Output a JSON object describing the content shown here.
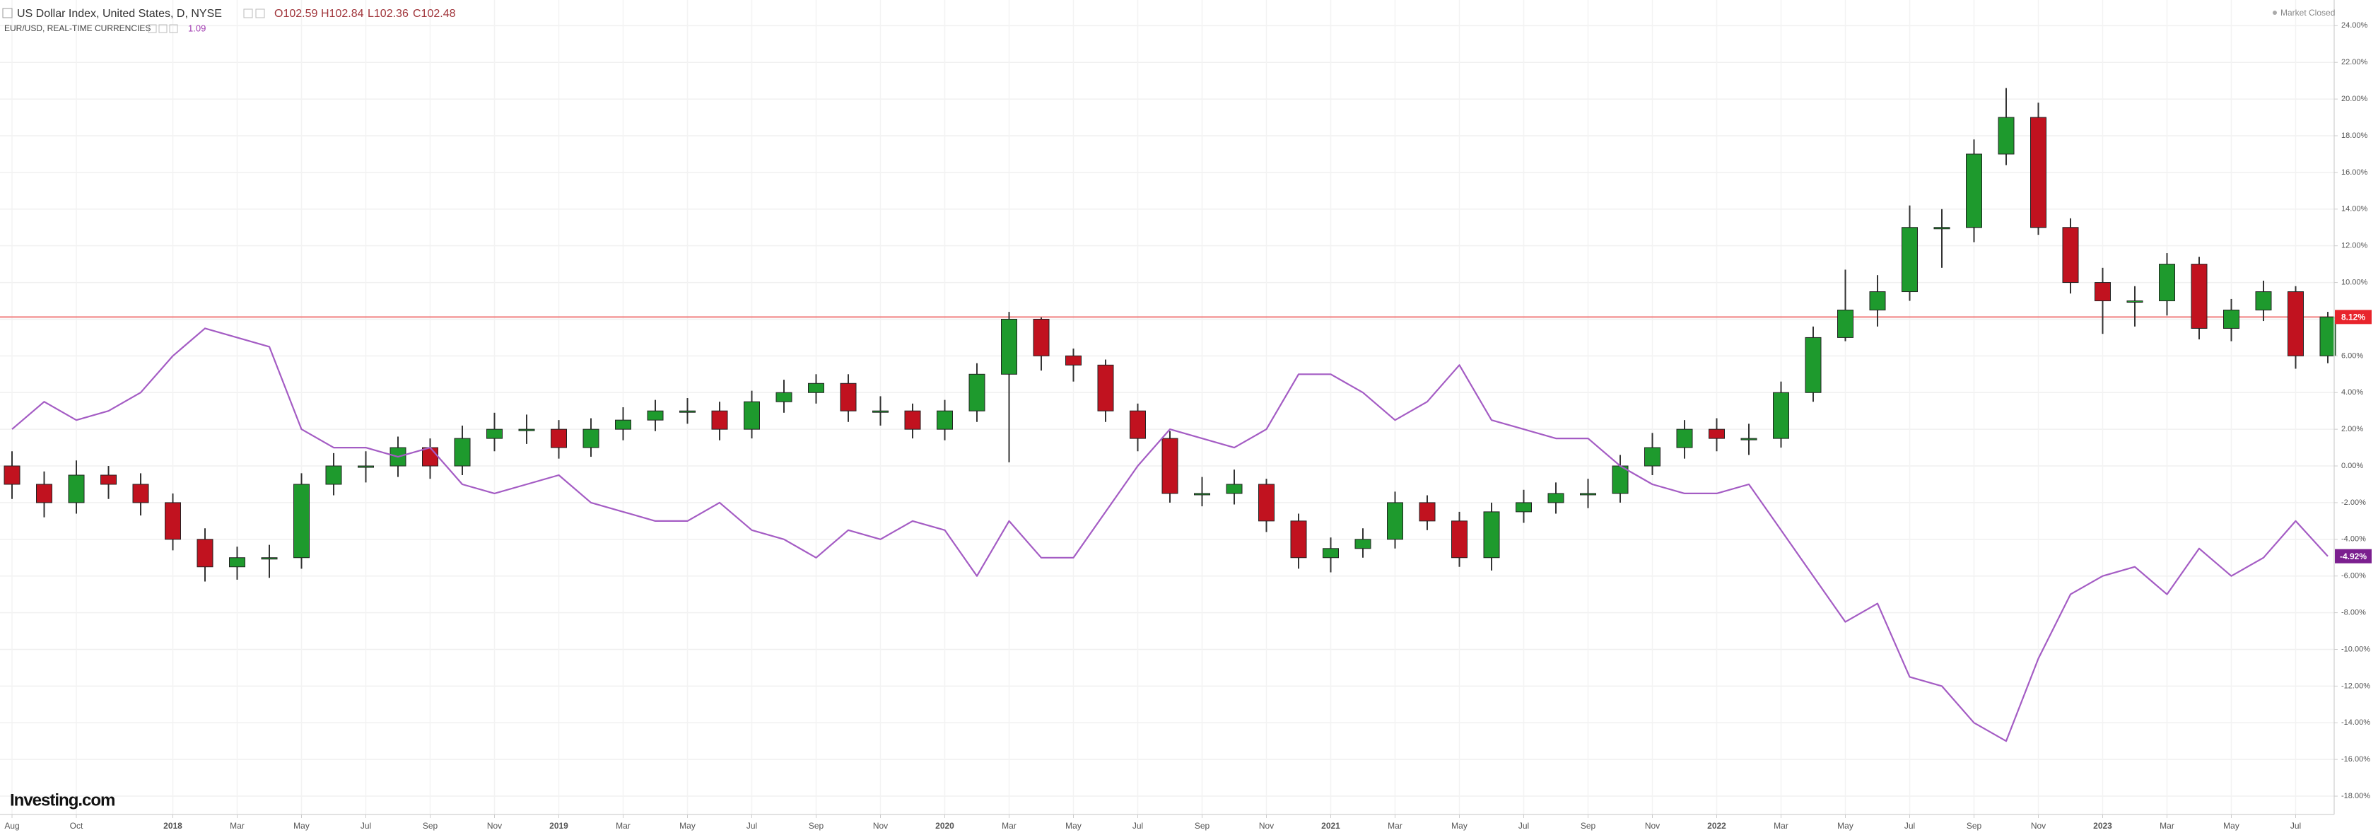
{
  "chart_data": {
    "type": "candlestick",
    "header": {
      "ohlc_labels": [
        "O102.59",
        "H102.84",
        "L102.36",
        "C102.48"
      ],
      "market_status": "Market Closed",
      "logo": "Investing.com"
    },
    "categories": [
      "Aug",
      null,
      "Oct",
      null,
      null,
      "2018",
      null,
      "Mar",
      null,
      "May",
      null,
      "Jul",
      null,
      "Sep",
      null,
      "Nov",
      null,
      "2019",
      null,
      "Mar",
      null,
      "May",
      null,
      "Jul",
      null,
      "Sep",
      null,
      "Nov",
      null,
      "2020",
      null,
      "Mar",
      null,
      "May",
      null,
      "Jul",
      null,
      "Sep",
      null,
      "Nov",
      null,
      "2021",
      null,
      "Mar",
      null,
      "May",
      null,
      "Jul",
      null,
      "Sep",
      null,
      "Nov",
      null,
      "2022",
      null,
      "Mar",
      null,
      "May",
      null,
      "Jul",
      null,
      "Sep",
      null,
      "Nov",
      null,
      "2023",
      null,
      "Mar",
      null,
      "May",
      null,
      "Jul",
      null
    ],
    "series": [
      {
        "name": "US Dollar Index, United States, D, NYSE",
        "type": "candlestick",
        "up_color": "#1e9a2d",
        "down_color": "#c1121f",
        "open": [
          0,
          -1,
          -2,
          -0.5,
          -1,
          -2,
          -4,
          -5.5,
          -5,
          -5,
          -1,
          0,
          0,
          1,
          0,
          1.5,
          2,
          2,
          1,
          2,
          2.5,
          3,
          3,
          2,
          3.5,
          4,
          4.5,
          3,
          3,
          2,
          3,
          5,
          8,
          6,
          5.5,
          3,
          1.5,
          -1.5,
          -1.5,
          -1,
          -3,
          -5,
          -4.5,
          -4,
          -2,
          -3,
          -5,
          -2.5,
          -2,
          -1.5,
          -1.5,
          0,
          1,
          2,
          1.5,
          1.5,
          4,
          7,
          8.5,
          9.5,
          13,
          13,
          17,
          19,
          13,
          10,
          9,
          9,
          11,
          7.5,
          8.5,
          9.5,
          6
        ],
        "high": [
          0.8,
          -0.3,
          0.3,
          0,
          -0.4,
          -1.5,
          -3.4,
          -4.4,
          -4.3,
          -0.4,
          0.7,
          0.8,
          1.6,
          1.5,
          2.2,
          2.9,
          2.8,
          2.5,
          2.6,
          3.2,
          3.6,
          3.7,
          3.5,
          4.1,
          4.7,
          5,
          5,
          3.8,
          3.4,
          3.6,
          5.6,
          8.4,
          8.1,
          6.4,
          5.8,
          3.4,
          1.9,
          -0.6,
          -0.2,
          -0.7,
          -2.6,
          -3.9,
          -3.4,
          -1.4,
          -1.6,
          -2.5,
          -2,
          -1.3,
          -0.9,
          -0.7,
          0.6,
          1.8,
          2.5,
          2.6,
          2.3,
          4.6,
          7.6,
          10.7,
          10.4,
          14.2,
          14,
          17.8,
          20.6,
          19.8,
          13.5,
          10.8,
          9.8,
          11.6,
          11.4,
          9.1,
          10.1,
          9.8,
          8.4
        ],
        "low": [
          -1.8,
          -2.8,
          -2.6,
          -1.8,
          -2.7,
          -4.6,
          -6.3,
          -6.2,
          -6.1,
          -5.6,
          -1.6,
          -0.9,
          -0.6,
          -0.7,
          -0.5,
          0.8,
          1.2,
          0.4,
          0.5,
          1.4,
          1.9,
          2.3,
          1.4,
          1.5,
          2.9,
          3.4,
          2.4,
          2.2,
          1.5,
          1.4,
          2.4,
          0.2,
          5.2,
          4.6,
          2.4,
          0.8,
          -2,
          -2.2,
          -2.1,
          -3.6,
          -5.6,
          -5.8,
          -5,
          -4.5,
          -3.5,
          -5.5,
          -5.7,
          -3.1,
          -2.6,
          -2.3,
          -2,
          -0.5,
          0.4,
          0.8,
          0.6,
          1,
          3.5,
          6.8,
          7.6,
          9,
          10.8,
          12.2,
          16.4,
          12.6,
          9.4,
          7.2,
          7.6,
          8.2,
          6.9,
          6.8,
          7.9,
          5.3,
          5.6
        ],
        "close": [
          -1,
          -2,
          -0.5,
          -1,
          -2,
          -4,
          -5.5,
          -5,
          -5,
          -1,
          0,
          0,
          1,
          0,
          1.5,
          2,
          2,
          1,
          2,
          2.5,
          3,
          3,
          2,
          3.5,
          4,
          4.5,
          3,
          3,
          2,
          3,
          5,
          8,
          6,
          5.5,
          3,
          1.5,
          -1.5,
          -1.5,
          -1,
          -3,
          -5,
          -4.5,
          -4,
          -2,
          -3,
          -5,
          -2.5,
          -2,
          -1.5,
          -1.5,
          0,
          1,
          2,
          1.5,
          1.5,
          4,
          7,
          8.5,
          9.5,
          13,
          13,
          17,
          19,
          13,
          10,
          9,
          9,
          11,
          7.5,
          8.5,
          9.5,
          6,
          8.12
        ],
        "last_label": {
          "value": 8.12,
          "label": "8.12%"
        },
        "price_line_color": "#f08080",
        "label_color": "#e8242c"
      },
      {
        "name": "EUR/USD, REAL-TIME CURRENCIES",
        "type": "line",
        "color": "#a45cc4",
        "last_price": "1.09",
        "values": [
          2,
          3.5,
          2.5,
          3,
          4,
          6,
          7.5,
          7,
          6.5,
          2,
          1,
          1,
          0.5,
          1,
          -1,
          -1.5,
          -1,
          -0.5,
          -2,
          -2.5,
          -3,
          -3,
          -2,
          -3.5,
          -4,
          -5,
          -3.5,
          -4,
          -3,
          -3.5,
          -6,
          -3,
          -5,
          -5,
          -2.5,
          0,
          2,
          1.5,
          1,
          2,
          5,
          5,
          4,
          2.5,
          3.5,
          5.5,
          2.5,
          2,
          1.5,
          1.5,
          0,
          -1,
          -1.5,
          -1.5,
          -1,
          -3.5,
          -6,
          -8.5,
          -7.5,
          -11.5,
          -12,
          -14,
          -15,
          -10.5,
          -7,
          -6,
          -5.5,
          -7,
          -4.5,
          -6,
          -5,
          -3,
          -4.92
        ],
        "last_label": {
          "value": -4.92,
          "label": "-4.92%"
        },
        "label_color": "#7b1f8f"
      }
    ],
    "ylim": [
      -19,
      25.4
    ],
    "yticks": [
      {
        "value": 24,
        "label": "24.00%"
      },
      {
        "value": 22,
        "label": "22.00%"
      },
      {
        "value": 20,
        "label": "20.00%"
      },
      {
        "value": 18,
        "label": "18.00%"
      },
      {
        "value": 16,
        "label": "16.00%"
      },
      {
        "value": 14,
        "label": "14.00%"
      },
      {
        "value": 12,
        "label": "12.00%"
      },
      {
        "value": 10,
        "label": "10.00%"
      },
      {
        "value": 8,
        "label": "8.00%"
      },
      {
        "value": 6,
        "label": "6.00%"
      },
      {
        "value": 4,
        "label": "4.00%"
      },
      {
        "value": 2,
        "label": "2.00%"
      },
      {
        "value": 0,
        "label": "0.00%"
      },
      {
        "value": -2,
        "label": "-2.00%"
      },
      {
        "value": -4,
        "label": "-4.00%"
      },
      {
        "value": -6,
        "label": "-6.00%"
      },
      {
        "value": -8,
        "label": "-8.00%"
      },
      {
        "value": -10,
        "label": "-10.00%"
      },
      {
        "value": -12,
        "label": "-12.00%"
      },
      {
        "value": -14,
        "label": "-14.00%"
      },
      {
        "value": -16,
        "label": "-16.00%"
      },
      {
        "value": -18,
        "label": "-18.00%"
      }
    ],
    "grid": true
  }
}
